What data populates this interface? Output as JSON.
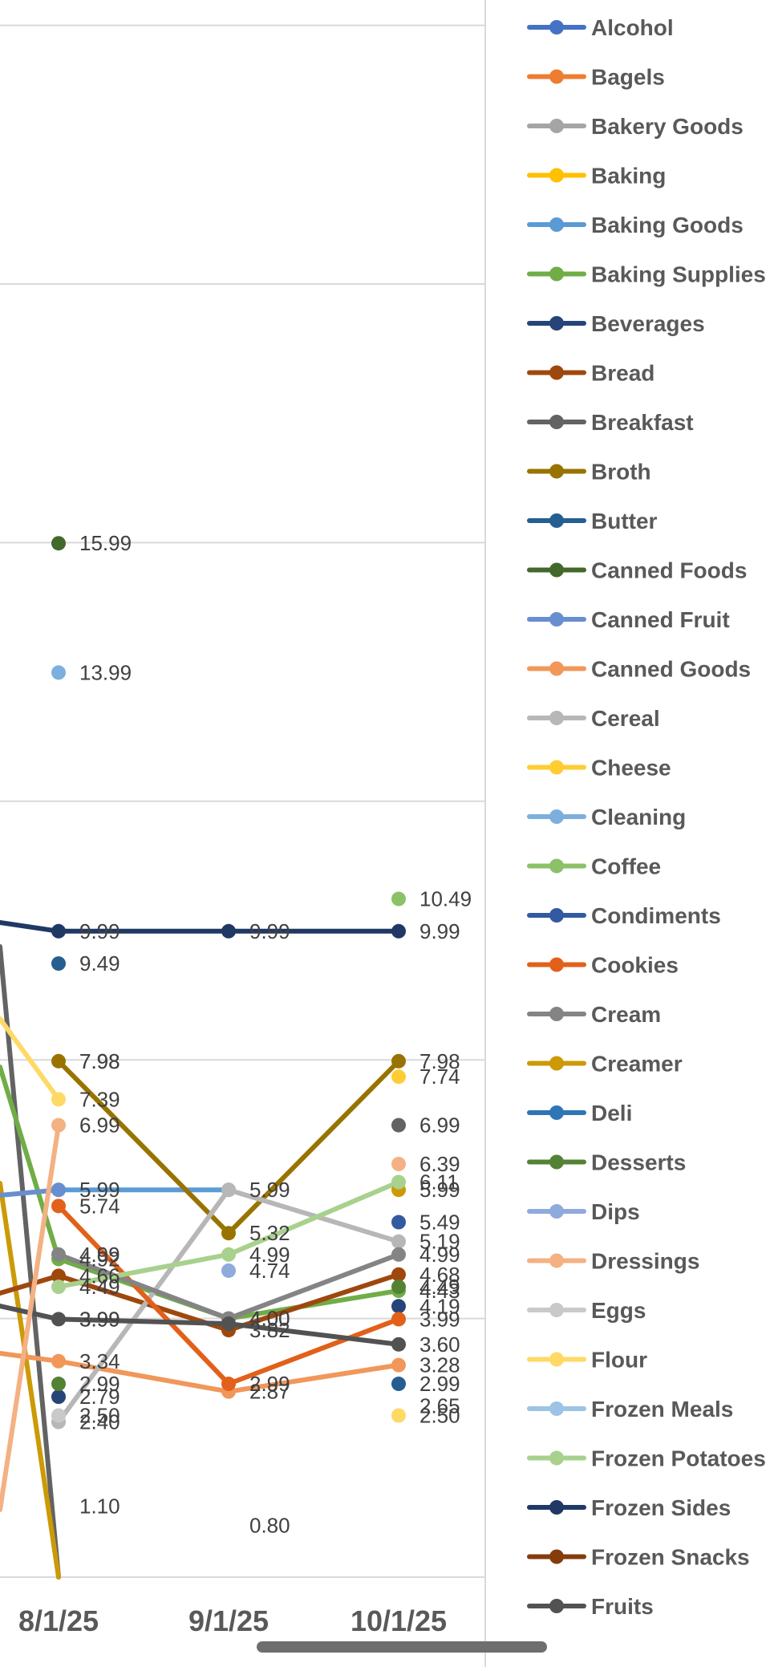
{
  "chart_data": {
    "type": "line",
    "x": [
      "8/1/25",
      "9/1/25",
      "10/1/25"
    ],
    "ylim": [
      0,
      24
    ],
    "grid": true,
    "legend_position": "right",
    "series": [
      {
        "name": "Alcohol",
        "color": "#4472C4",
        "values": [
          null,
          null,
          null
        ]
      },
      {
        "name": "Bagels",
        "color": "#ED7D31",
        "values": [
          null,
          null,
          null
        ]
      },
      {
        "name": "Bakery Goods",
        "color": "#A5A5A5",
        "values": [
          null,
          null,
          null
        ]
      },
      {
        "name": "Baking",
        "color": "#FFC000",
        "values": [
          null,
          null,
          3.99
        ]
      },
      {
        "name": "Baking Goods",
        "color": "#5B9BD5",
        "values": [
          5.99,
          5.99,
          null
        ]
      },
      {
        "name": "Baking Supplies",
        "color": "#70AD47",
        "values": [
          4.92,
          4.0,
          4.43
        ]
      },
      {
        "name": "Beverages",
        "color": "#264478",
        "values": [
          2.79,
          null,
          4.19
        ]
      },
      {
        "name": "Bread",
        "color": "#9E480E",
        "values": [
          4.66,
          3.82,
          4.68
        ]
      },
      {
        "name": "Breakfast",
        "color": "#636363",
        "values": [
          null,
          null,
          6.99
        ]
      },
      {
        "name": "Broth",
        "color": "#997300",
        "values": [
          7.98,
          5.32,
          7.98
        ]
      },
      {
        "name": "Butter",
        "color": "#255E91",
        "values": [
          9.49,
          null,
          2.99
        ]
      },
      {
        "name": "Canned Foods",
        "color": "#43682B",
        "values": [
          15.99,
          null,
          null
        ]
      },
      {
        "name": "Canned Fruit",
        "color": "#698ED0",
        "values": [
          5.99,
          null,
          null
        ]
      },
      {
        "name": "Canned Goods",
        "color": "#F1975A",
        "values": [
          3.34,
          2.87,
          3.28
        ]
      },
      {
        "name": "Cereal",
        "color": "#B7B7B7",
        "values": [
          2.4,
          5.99,
          5.19
        ]
      },
      {
        "name": "Cheese",
        "color": "#FFCD33",
        "values": [
          null,
          null,
          7.74
        ]
      },
      {
        "name": "Cleaning",
        "color": "#7CAFDD",
        "values": [
          13.99,
          null,
          null
        ]
      },
      {
        "name": "Coffee",
        "color": "#8CC168",
        "values": [
          null,
          null,
          10.49
        ]
      },
      {
        "name": "Condiments",
        "color": "#335AA1",
        "values": [
          null,
          null,
          5.49
        ]
      },
      {
        "name": "Cookies",
        "color": "#E2601A",
        "values": [
          5.74,
          2.99,
          3.99
        ]
      },
      {
        "name": "Cream",
        "color": "#848484",
        "values": [
          4.99,
          4.0,
          4.99
        ]
      },
      {
        "name": "Creamer",
        "color": "#CC9A06",
        "values": [
          null,
          null,
          5.99
        ]
      },
      {
        "name": "Deli",
        "color": "#2E75B6",
        "values": [
          null,
          null,
          null
        ]
      },
      {
        "name": "Desserts",
        "color": "#548235",
        "values": [
          2.99,
          null,
          4.49
        ]
      },
      {
        "name": "Dips",
        "color": "#8FAADC",
        "values": [
          null,
          4.74,
          null
        ]
      },
      {
        "name": "Dressings",
        "color": "#F4B183",
        "values": [
          6.99,
          null,
          6.39
        ]
      },
      {
        "name": "Eggs",
        "color": "#C9C9C9",
        "values": [
          2.5,
          null,
          null
        ]
      },
      {
        "name": "Flour",
        "color": "#FFD966",
        "values": [
          7.39,
          null,
          2.5
        ]
      },
      {
        "name": "Frozen Meals",
        "color": "#9DC3E6",
        "values": [
          null,
          null,
          null
        ]
      },
      {
        "name": "Frozen Potatoes",
        "color": "#A9D18E",
        "values": [
          4.49,
          4.99,
          6.11
        ]
      },
      {
        "name": "Frozen Sides",
        "color": "#203864",
        "values": [
          9.99,
          9.99,
          9.99
        ]
      },
      {
        "name": "Frozen Snacks",
        "color": "#843C0C",
        "values": [
          null,
          null,
          null
        ]
      },
      {
        "name": "Fruits",
        "color": "#525252",
        "values": [
          3.99,
          3.92,
          3.6
        ]
      }
    ],
    "data_labels": {
      "8/1/25": [
        "15.99",
        "13.99",
        "9.99",
        "9.49",
        "7.98",
        "7.98",
        "7.39",
        "6.99",
        "5.99",
        "5.74",
        "4.92",
        "4.99",
        "4.66",
        "4.49",
        "3.99",
        "3.99",
        "3.34",
        "2.99",
        "2.79",
        "2.40",
        "2.50",
        "1.10"
      ],
      "9/1/25": [
        "9.99",
        "5.99",
        "5.32",
        "4.99",
        "4.74",
        "4.00",
        "4.00",
        "3.82",
        "2.99",
        "2.87",
        "0.80"
      ],
      "10/1/25": [
        "10.49",
        "9.99",
        "7.98",
        "7.74",
        "6.99",
        "6.39",
        "6.11",
        "5.99",
        "5.49",
        "5.19",
        "4.99",
        "4.68",
        "4.49",
        "4.43",
        "4.19",
        "3.99",
        "3.60",
        "3.28",
        "2.99",
        "2.65",
        "2.50"
      ]
    }
  }
}
